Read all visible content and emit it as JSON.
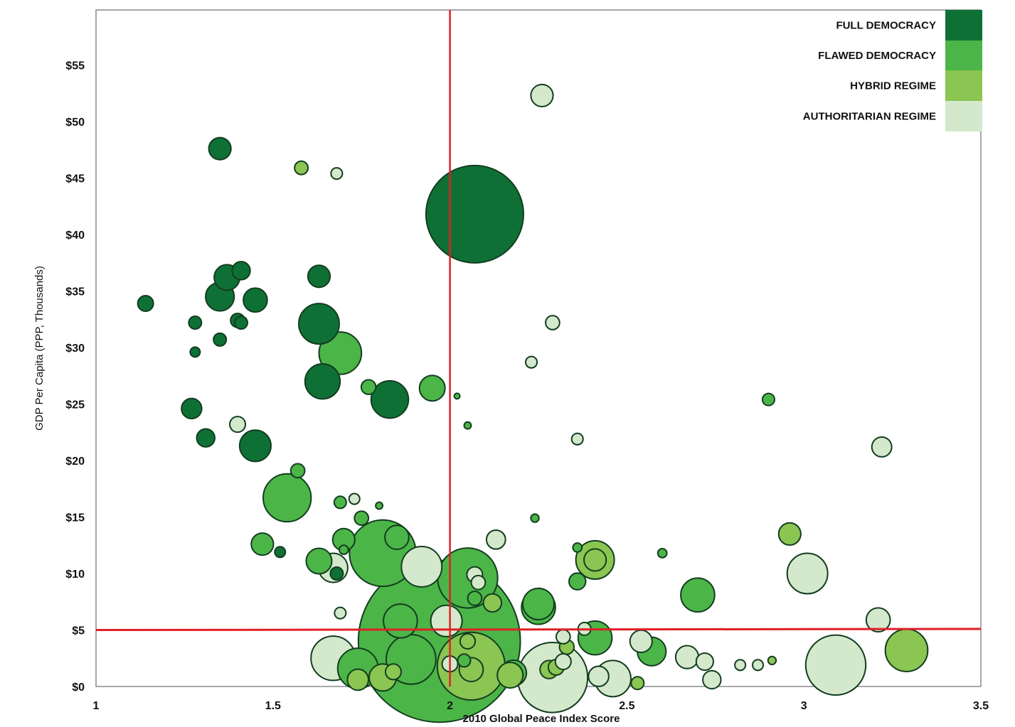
{
  "colors": {
    "full_democracy": "#0f7036",
    "flawed_democracy": "#4cb548",
    "hybrid_regime": "#8bc552",
    "authoritarian_regime": "#d4e8cc",
    "reference_line": "#e01f26",
    "frame": "#8a8a8a"
  },
  "chart_data": {
    "type": "scatter",
    "xlabel": "2010 Global Peace Index Score",
    "ylabel": "GDP Per Capita (PPP, Thousands)",
    "xlim": [
      1,
      3.5
    ],
    "ylim": [
      0,
      60
    ],
    "x_ticks": [
      {
        "value": 1,
        "label": "1"
      },
      {
        "value": 1.5,
        "label": "1.5"
      },
      {
        "value": 2,
        "label": "2"
      },
      {
        "value": 2.5,
        "label": "2.5"
      },
      {
        "value": 3,
        "label": "3"
      },
      {
        "value": 3.5,
        "label": "3.5"
      }
    ],
    "y_ticks": [
      {
        "value": 0,
        "label": "$0"
      },
      {
        "value": 5,
        "label": "$5"
      },
      {
        "value": 10,
        "label": "$10"
      },
      {
        "value": 15,
        "label": "$15"
      },
      {
        "value": 20,
        "label": "$20"
      },
      {
        "value": 25,
        "label": "$25"
      },
      {
        "value": 30,
        "label": "$30"
      },
      {
        "value": 35,
        "label": "$35"
      },
      {
        "value": 40,
        "label": "$40"
      },
      {
        "value": 45,
        "label": "$45"
      },
      {
        "value": 50,
        "label": "$50"
      },
      {
        "value": 55,
        "label": "$55"
      }
    ],
    "reference_lines": {
      "x": 2.0,
      "y": 5.0
    },
    "grid": false,
    "legend_position": "top-right",
    "series": [
      {
        "name": "FULL DEMOCRACY",
        "color_key": "full_democracy",
        "points": [
          {
            "x": 1.35,
            "y": 47.6,
            "size": 3
          },
          {
            "x": 2.07,
            "y": 41.8,
            "size": 58
          },
          {
            "x": 1.41,
            "y": 36.8,
            "size": 2
          },
          {
            "x": 1.37,
            "y": 36.2,
            "size": 4
          },
          {
            "x": 1.63,
            "y": 36.3,
            "size": 3
          },
          {
            "x": 1.35,
            "y": 34.5,
            "size": 5
          },
          {
            "x": 1.45,
            "y": 34.2,
            "size": 3.5
          },
          {
            "x": 1.14,
            "y": 33.9,
            "size": 1.5
          },
          {
            "x": 1.28,
            "y": 32.2,
            "size": 1
          },
          {
            "x": 1.41,
            "y": 32.2,
            "size": 1
          },
          {
            "x": 1.4,
            "y": 32.4,
            "size": 1.2
          },
          {
            "x": 1.63,
            "y": 32.1,
            "size": 10
          },
          {
            "x": 1.35,
            "y": 30.7,
            "size": 1
          },
          {
            "x": 1.28,
            "y": 29.6,
            "size": 0.6
          },
          {
            "x": 1.64,
            "y": 27.0,
            "size": 7.5
          },
          {
            "x": 1.83,
            "y": 25.4,
            "size": 8.5
          },
          {
            "x": 1.27,
            "y": 24.6,
            "size": 2.5
          },
          {
            "x": 1.31,
            "y": 22.0,
            "size": 2
          },
          {
            "x": 1.45,
            "y": 21.3,
            "size": 6
          },
          {
            "x": 1.52,
            "y": 11.9,
            "size": 0.7
          },
          {
            "x": 1.68,
            "y": 10.0,
            "size": 1
          }
        ]
      },
      {
        "name": "FLAWED DEMOCRACY",
        "color_key": "flawed_democracy",
        "points": [
          {
            "x": 1.69,
            "y": 29.5,
            "size": 11
          },
          {
            "x": 1.95,
            "y": 26.4,
            "size": 4
          },
          {
            "x": 1.77,
            "y": 26.5,
            "size": 1.3
          },
          {
            "x": 2.02,
            "y": 25.7,
            "size": 0.2
          },
          {
            "x": 2.9,
            "y": 25.4,
            "size": 0.9
          },
          {
            "x": 1.54,
            "y": 16.7,
            "size": 14
          },
          {
            "x": 1.47,
            "y": 12.6,
            "size": 3
          },
          {
            "x": 1.7,
            "y": 13.0,
            "size": 3
          },
          {
            "x": 1.85,
            "y": 13.2,
            "size": 3.5
          },
          {
            "x": 1.81,
            "y": 11.8,
            "size": 27
          },
          {
            "x": 1.63,
            "y": 11.1,
            "size": 4
          },
          {
            "x": 2.05,
            "y": 9.6,
            "size": 22
          },
          {
            "x": 1.97,
            "y": 4.0,
            "size": 160
          },
          {
            "x": 2.25,
            "y": 7.0,
            "size": 7
          },
          {
            "x": 2.7,
            "y": 8.1,
            "size": 7
          },
          {
            "x": 2.41,
            "y": 4.3,
            "size": 7
          },
          {
            "x": 2.57,
            "y": 3.1,
            "size": 5
          },
          {
            "x": 2.36,
            "y": 9.3,
            "size": 1.7
          },
          {
            "x": 2.36,
            "y": 12.3,
            "size": 0.5
          },
          {
            "x": 2.05,
            "y": 23.1,
            "size": 0.3
          },
          {
            "x": 1.69,
            "y": 16.3,
            "size": 0.9
          },
          {
            "x": 1.75,
            "y": 14.9,
            "size": 1.2
          },
          {
            "x": 1.8,
            "y": 16.0,
            "size": 0.3
          },
          {
            "x": 1.57,
            "y": 19.1,
            "size": 1.2
          },
          {
            "x": 2.24,
            "y": 14.9,
            "size": 0.4
          },
          {
            "x": 1.7,
            "y": 12.1,
            "size": 0.5
          },
          {
            "x": 2.6,
            "y": 11.8,
            "size": 0.5
          },
          {
            "x": 1.74,
            "y": 1.6,
            "size": 10
          },
          {
            "x": 1.89,
            "y": 2.4,
            "size": 15
          },
          {
            "x": 1.86,
            "y": 5.8,
            "size": 7
          },
          {
            "x": 2.07,
            "y": 7.8,
            "size": 1.2
          },
          {
            "x": 2.18,
            "y": 1.2,
            "size": 4
          },
          {
            "x": 2.04,
            "y": 2.3,
            "size": 1
          },
          {
            "x": 2.25,
            "y": 7.3,
            "size": 6
          }
        ]
      },
      {
        "name": "HYBRID REGIME",
        "color_key": "hybrid_regime",
        "points": [
          {
            "x": 1.58,
            "y": 45.9,
            "size": 1.1
          },
          {
            "x": 2.96,
            "y": 13.5,
            "size": 3
          },
          {
            "x": 2.41,
            "y": 11.2,
            "size": 9
          },
          {
            "x": 2.41,
            "y": 11.2,
            "size": 3
          },
          {
            "x": 3.29,
            "y": 3.2,
            "size": 11
          },
          {
            "x": 2.06,
            "y": 1.8,
            "size": 28
          },
          {
            "x": 2.06,
            "y": 1.5,
            "size": 3.5
          },
          {
            "x": 2.17,
            "y": 1.0,
            "size": 4
          },
          {
            "x": 2.28,
            "y": 1.5,
            "size": 2
          },
          {
            "x": 2.3,
            "y": 1.7,
            "size": 1.5
          },
          {
            "x": 2.33,
            "y": 3.5,
            "size": 1.3
          },
          {
            "x": 1.81,
            "y": 0.8,
            "size": 4.5
          },
          {
            "x": 1.84,
            "y": 1.3,
            "size": 1.5
          },
          {
            "x": 1.74,
            "y": 0.6,
            "size": 2.7
          },
          {
            "x": 2.12,
            "y": 7.4,
            "size": 2
          },
          {
            "x": 2.05,
            "y": 4.0,
            "size": 1.4
          },
          {
            "x": 2.91,
            "y": 2.3,
            "size": 0.4
          },
          {
            "x": 2.53,
            "y": 0.3,
            "size": 1
          }
        ]
      },
      {
        "name": "AUTHORITARIAN REGIME",
        "color_key": "authoritarian_regime",
        "points": [
          {
            "x": 2.26,
            "y": 52.3,
            "size": 3
          },
          {
            "x": 1.68,
            "y": 45.4,
            "size": 0.8
          },
          {
            "x": 2.29,
            "y": 32.2,
            "size": 1.2
          },
          {
            "x": 2.23,
            "y": 28.7,
            "size": 0.8
          },
          {
            "x": 2.36,
            "y": 21.9,
            "size": 0.8
          },
          {
            "x": 3.22,
            "y": 21.2,
            "size": 2.4
          },
          {
            "x": 1.73,
            "y": 16.6,
            "size": 0.7
          },
          {
            "x": 1.4,
            "y": 23.2,
            "size": 1.5
          },
          {
            "x": 2.13,
            "y": 13.0,
            "size": 2.2
          },
          {
            "x": 3.01,
            "y": 10.0,
            "size": 10
          },
          {
            "x": 3.21,
            "y": 5.9,
            "size": 3.5
          },
          {
            "x": 1.92,
            "y": 10.6,
            "size": 10
          },
          {
            "x": 1.67,
            "y": 10.5,
            "size": 5.2
          },
          {
            "x": 1.99,
            "y": 5.8,
            "size": 6
          },
          {
            "x": 2.07,
            "y": 9.9,
            "size": 1.5
          },
          {
            "x": 2.08,
            "y": 9.2,
            "size": 1.2
          },
          {
            "x": 1.69,
            "y": 6.5,
            "size": 0.8
          },
          {
            "x": 1.67,
            "y": 2.5,
            "size": 12
          },
          {
            "x": 2.29,
            "y": 0.8,
            "size": 30
          },
          {
            "x": 2.46,
            "y": 0.7,
            "size": 8
          },
          {
            "x": 2.42,
            "y": 0.9,
            "size": 2.5
          },
          {
            "x": 2.54,
            "y": 4.0,
            "size": 3
          },
          {
            "x": 2.67,
            "y": 2.6,
            "size": 3.2
          },
          {
            "x": 2.72,
            "y": 2.2,
            "size": 1.8
          },
          {
            "x": 2.74,
            "y": 0.6,
            "size": 2
          },
          {
            "x": 2.82,
            "y": 1.9,
            "size": 0.7
          },
          {
            "x": 2.87,
            "y": 1.9,
            "size": 0.7
          },
          {
            "x": 3.09,
            "y": 1.9,
            "size": 22
          },
          {
            "x": 2.32,
            "y": 4.4,
            "size": 1.2
          },
          {
            "x": 2.38,
            "y": 5.1,
            "size": 1
          },
          {
            "x": 2.0,
            "y": 2.0,
            "size": 1.5
          },
          {
            "x": 2.32,
            "y": 2.2,
            "size": 1.5
          }
        ]
      }
    ]
  }
}
